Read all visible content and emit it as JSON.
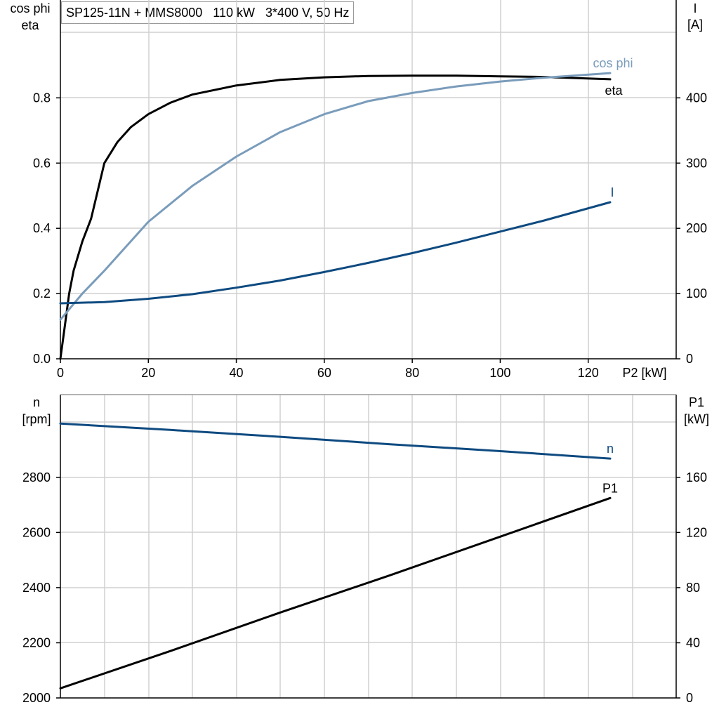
{
  "title": "SP125-11N + MMS8000   110 kW   3*400 V, 50 Hz",
  "colors": {
    "eta": "#000000",
    "cos_phi": "#7a9cbb",
    "current": "#0e4a80",
    "speed": "#0e4a80",
    "p1": "#000000",
    "grid": "#d0d0d0"
  },
  "chart_data": [
    {
      "type": "line",
      "x_axis": {
        "label": "P2 [kW]",
        "range": [
          0,
          140
        ],
        "ticks": [
          0,
          20,
          40,
          60,
          80,
          100,
          120
        ]
      },
      "y_left": {
        "label_line1": "cos phi",
        "label_line2": "eta",
        "range": [
          0,
          1.1
        ],
        "ticks": [
          0.0,
          0.2,
          0.4,
          0.6,
          0.8
        ],
        "tick_labels": [
          "0.0",
          "0.2",
          "0.4",
          "0.6",
          "0.8"
        ]
      },
      "y_right": {
        "label_line1": "I",
        "label_line2": "[A]",
        "range": [
          0,
          550
        ],
        "ticks": [
          0,
          100,
          200,
          300,
          400
        ],
        "tick_labels": [
          "0",
          "100",
          "200",
          "300",
          "400"
        ]
      },
      "grid": true,
      "series": [
        {
          "name": "eta",
          "axis": "left",
          "color_key": "eta",
          "x": [
            0,
            1,
            2,
            3,
            5,
            7,
            10,
            13,
            16,
            20,
            25,
            30,
            40,
            50,
            60,
            70,
            80,
            90,
            100,
            110,
            125
          ],
          "y": [
            0,
            0.1,
            0.2,
            0.27,
            0.36,
            0.43,
            0.6,
            0.665,
            0.71,
            0.75,
            0.785,
            0.81,
            0.838,
            0.855,
            0.863,
            0.867,
            0.868,
            0.868,
            0.866,
            0.864,
            0.857
          ]
        },
        {
          "name": "cos phi",
          "axis": "left",
          "color_key": "cos_phi",
          "x": [
            0,
            5,
            10,
            20,
            30,
            40,
            50,
            60,
            70,
            80,
            90,
            100,
            110,
            125
          ],
          "y": [
            0.12,
            0.2,
            0.27,
            0.42,
            0.53,
            0.62,
            0.695,
            0.75,
            0.79,
            0.815,
            0.835,
            0.85,
            0.862,
            0.876
          ]
        },
        {
          "name": "I",
          "axis": "right",
          "color_key": "current",
          "x": [
            0,
            10,
            20,
            30,
            40,
            50,
            60,
            70,
            80,
            90,
            100,
            110,
            125
          ],
          "y": [
            85,
            87,
            92,
            99,
            109,
            120,
            133,
            147,
            162,
            178,
            195,
            212,
            240
          ]
        }
      ]
    },
    {
      "type": "line",
      "x_axis": {
        "range": [
          0,
          140
        ]
      },
      "y_left": {
        "label_line1": "n",
        "label_line2": "[rpm]",
        "range": [
          2000,
          3100
        ],
        "ticks": [
          2000,
          2200,
          2400,
          2600,
          2800
        ],
        "tick_labels": [
          "2000",
          "2200",
          "2400",
          "2600",
          "2800"
        ]
      },
      "y_right": {
        "label_line1": "P1",
        "label_line2": "[kW]",
        "range": [
          0,
          220
        ],
        "ticks": [
          0,
          40,
          80,
          120,
          160
        ],
        "tick_labels": [
          "0",
          "40",
          "80",
          "120",
          "160"
        ]
      },
      "grid": true,
      "series": [
        {
          "name": "n",
          "axis": "left",
          "color_key": "speed",
          "x": [
            0,
            25,
            50,
            75,
            100,
            125
          ],
          "y": [
            2995,
            2972,
            2947,
            2920,
            2895,
            2868
          ]
        },
        {
          "name": "P1",
          "axis": "right",
          "color_key": "p1",
          "x": [
            0,
            25,
            50,
            75,
            100,
            125
          ],
          "y": [
            7,
            34,
            62,
            89,
            117,
            145
          ]
        }
      ]
    }
  ]
}
